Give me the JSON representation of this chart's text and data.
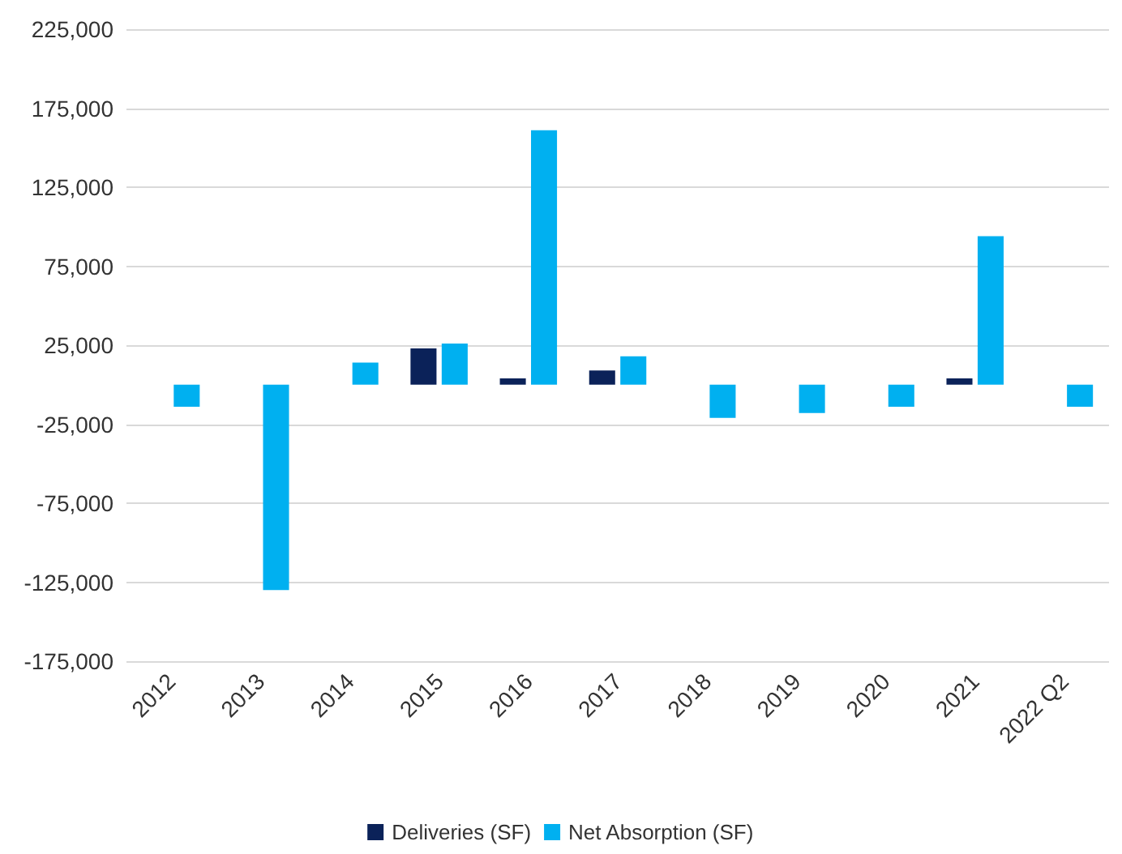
{
  "chart_data": {
    "type": "bar",
    "categories": [
      "2012",
      "2013",
      "2014",
      "2015",
      "2016",
      "2017",
      "2018",
      "2019",
      "2020",
      "2021",
      "2022 Q2"
    ],
    "series": [
      {
        "name": "Deliveries (SF)",
        "color": "#0b2259",
        "values": [
          null,
          null,
          null,
          23000,
          4000,
          9000,
          null,
          null,
          null,
          4000,
          null
        ]
      },
      {
        "name": "Net Absorption (SF)",
        "color": "#00b0f0",
        "values": [
          -14000,
          -130000,
          14000,
          26000,
          161000,
          18000,
          -21000,
          -18000,
          -14000,
          94000,
          -14000
        ]
      }
    ],
    "ylim": [
      -175000,
      225000
    ],
    "yticks": [
      {
        "value": -175000,
        "label": "-175,000"
      },
      {
        "value": -125000,
        "label": "-125,000"
      },
      {
        "value": -75000,
        "label": "-75,000"
      },
      {
        "value": -25000,
        "label": "-25,000"
      },
      {
        "value": 25000,
        "label": "25,000"
      },
      {
        "value": 75000,
        "label": "75,000"
      },
      {
        "value": 125000,
        "label": "125,000"
      },
      {
        "value": 175000,
        "label": "175,000"
      },
      {
        "value": 225000,
        "label": "225,000"
      }
    ],
    "grid": "y",
    "legend": "bottom"
  }
}
